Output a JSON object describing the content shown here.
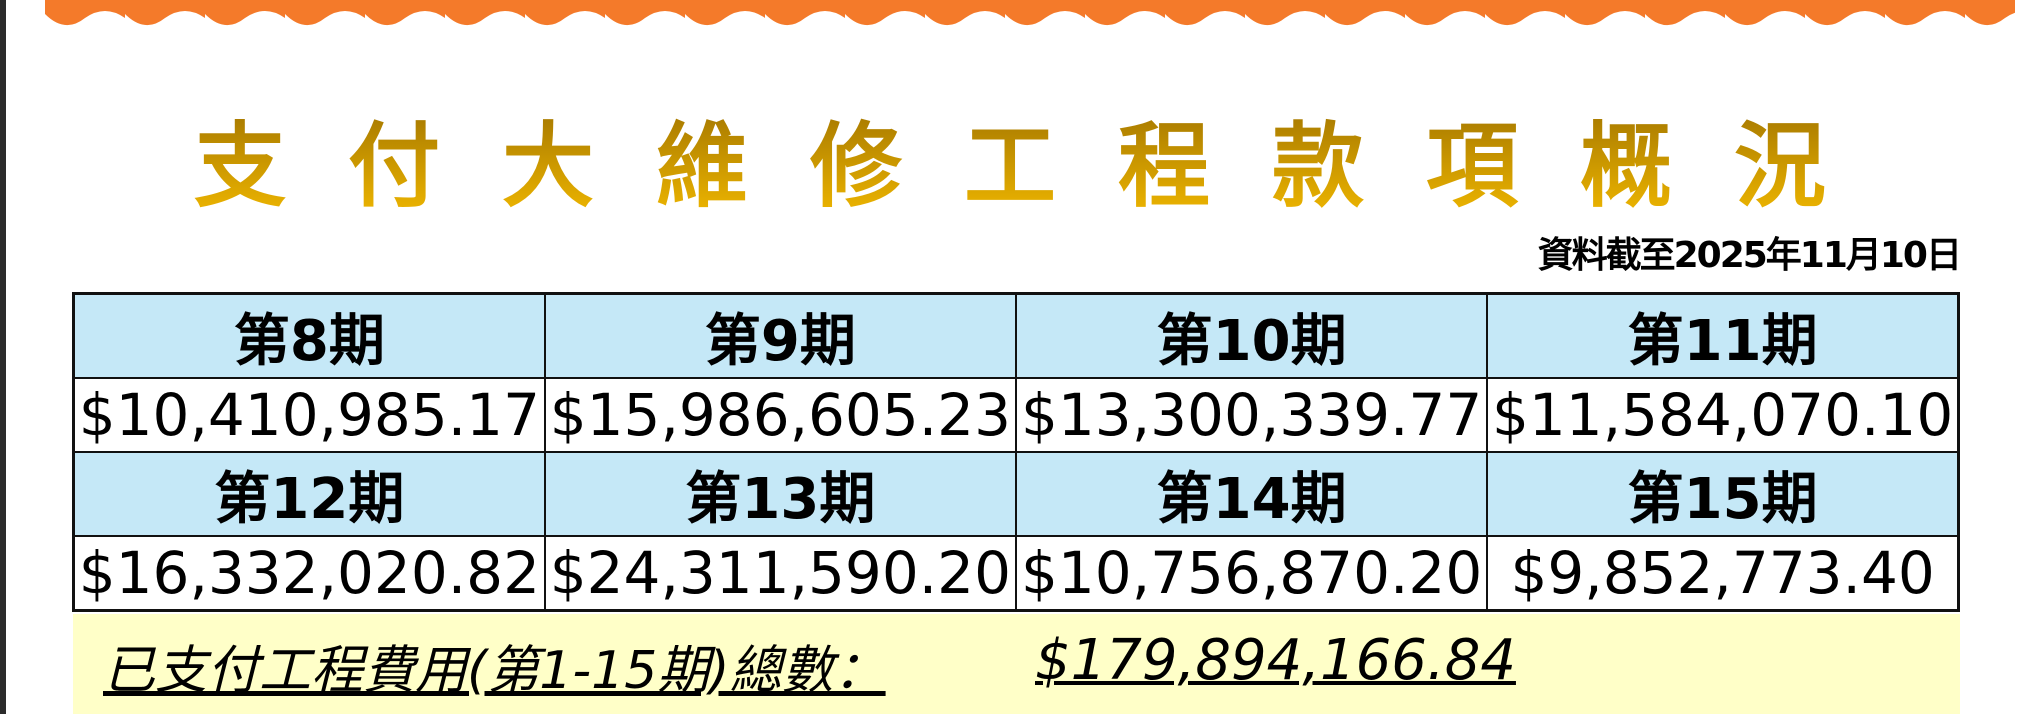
{
  "title": "支付大維修工程款項概況",
  "as_of": "資料截至2025年11月10日",
  "colors": {
    "wave": "#f47a2a",
    "header_bg": "#c5e8f7",
    "total_bg": "#ffffc8",
    "title_top": "#a87a00",
    "title_bottom": "#f2b900"
  },
  "periods": [
    {
      "label": "第8期",
      "amount": "$10,410,985.17"
    },
    {
      "label": "第9期",
      "amount": "$15,986,605.23"
    },
    {
      "label": "第10期",
      "amount": "$13,300,339.77"
    },
    {
      "label": "第11期",
      "amount": "$11,584,070.10"
    },
    {
      "label": "第12期",
      "amount": "$16,332,020.82"
    },
    {
      "label": "第13期",
      "amount": "$24,311,590.20"
    },
    {
      "label": "第14期",
      "amount": "$10,756,870.20"
    },
    {
      "label": "第15期",
      "amount": "$9,852,773.40"
    }
  ],
  "total": {
    "label": "已支付工程費用(第1-15期)總數：",
    "value": "$179,894,166.84"
  }
}
